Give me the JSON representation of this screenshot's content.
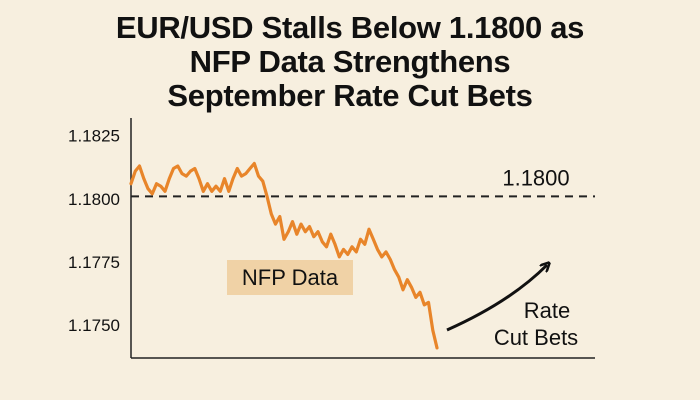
{
  "chart_data": {
    "type": "line",
    "title": [
      "EUR/USD Stalls Below 1.1800 as",
      "NFP Data Strengthens",
      "September Rate Cut Bets"
    ],
    "xlabel": "",
    "ylabel": "",
    "ylim": [
      1.1737,
      1.1832
    ],
    "yticks": [
      "1.1825",
      "1.1800",
      "1.1775",
      "1.1750"
    ],
    "ytick_values": [
      1.1825,
      1.18,
      1.1775,
      1.175
    ],
    "grid": false,
    "colors": {
      "line": "#e8852a",
      "reference": "#222222",
      "annotation_bg": "#f0d2a6",
      "background": "#f7efdf"
    },
    "series": [
      {
        "values": [
          1.1806,
          1.1811,
          1.1813,
          1.1808,
          1.1804,
          1.1802,
          1.1806,
          1.1805,
          1.1803,
          1.1808,
          1.1812,
          1.1813,
          1.181,
          1.1809,
          1.1811,
          1.1812,
          1.1808,
          1.1803,
          1.1806,
          1.1803,
          1.1805,
          1.1803,
          1.1808,
          1.1803,
          1.1808,
          1.1812,
          1.1809,
          1.181,
          1.1812,
          1.1814,
          1.1809,
          1.1807,
          1.1801,
          1.1794,
          1.179,
          1.1793,
          1.1784,
          1.1787,
          1.1791,
          1.1786,
          1.179,
          1.1787,
          1.1789,
          1.1785,
          1.1787,
          1.1783,
          1.1781,
          1.1786,
          1.1782,
          1.1777,
          1.178,
          1.1778,
          1.1781,
          1.1779,
          1.1784,
          1.1782,
          1.1788,
          1.1784,
          1.178,
          1.1777,
          1.1779,
          1.1776,
          1.1772,
          1.1769,
          1.1764,
          1.1768,
          1.1765,
          1.1761,
          1.1763,
          1.1758,
          1.1759,
          1.1748,
          1.1741
        ]
      }
    ],
    "reference_line": {
      "value": 1.1801,
      "label": "1.1800"
    },
    "annotations": [
      {
        "text": "NFP Data",
        "type": "highlight-box"
      },
      {
        "text": [
          "Rate",
          "Cut Bets"
        ],
        "type": "arrow-label"
      }
    ]
  }
}
